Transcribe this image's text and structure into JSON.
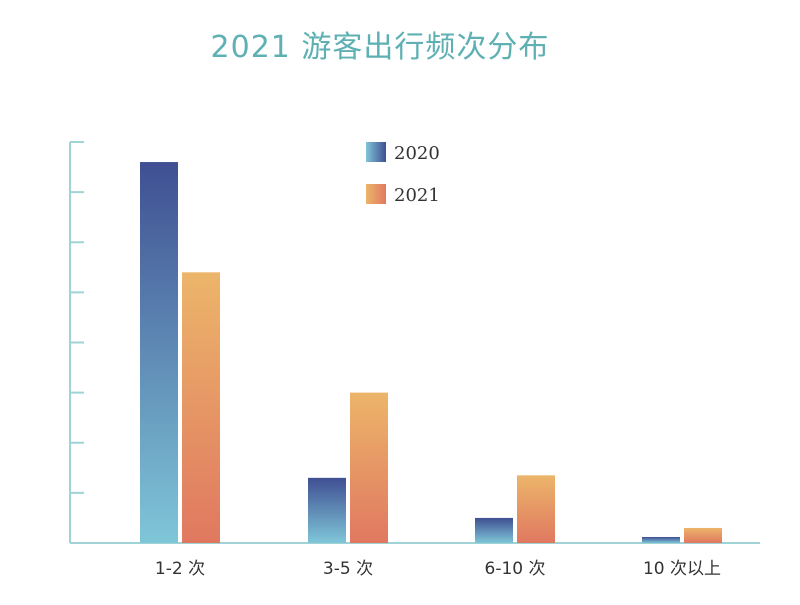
{
  "chart_data": {
    "type": "bar",
    "title": "2021 游客出行频次分布",
    "categories": [
      "1-2 次",
      "3-5 次",
      "6-10 次",
      "10 次以上"
    ],
    "series": [
      {
        "name": "2020",
        "values": [
          76,
          13,
          5,
          1.2
        ]
      },
      {
        "name": "2021",
        "values": [
          54,
          30,
          13.5,
          3
        ]
      }
    ],
    "ylim": [
      0,
      80
    ],
    "y_ticks": [
      0,
      10,
      20,
      30,
      40,
      50,
      60,
      70,
      80
    ],
    "y_tick_labels_visible": false,
    "grid": false,
    "legend_position": "top-center",
    "colors": {
      "series_2020": [
        "#3f4f92",
        "#7fc6d8"
      ],
      "series_2021": [
        "#ecb56a",
        "#e07860"
      ],
      "axis": "#9fd3d6",
      "title": "#5fb0b3"
    }
  }
}
